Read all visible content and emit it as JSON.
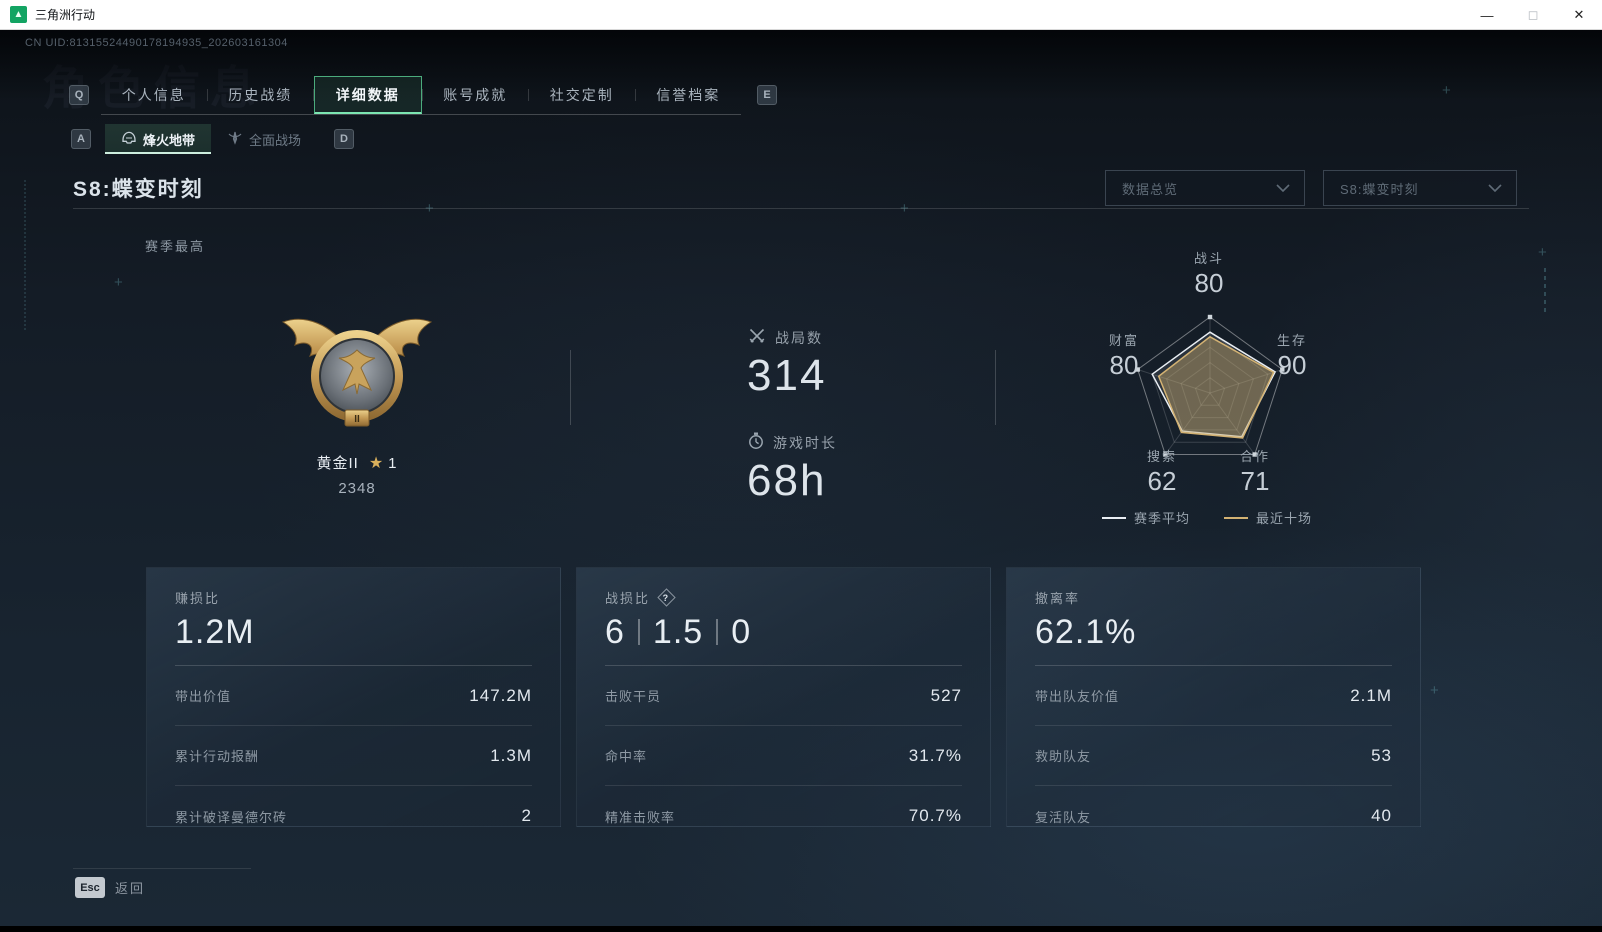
{
  "window": {
    "title": "三角洲行动",
    "controls": {
      "minimize": "—",
      "maximize": "◻",
      "close": "✕"
    }
  },
  "header": {
    "uid": "CN UID:81315524490178194935_202603161304",
    "ghost_title": "角色信息"
  },
  "tabs": {
    "left_key": "Q",
    "right_key": "E",
    "items": [
      {
        "label": "个人信息",
        "active": false
      },
      {
        "label": "历史战绩",
        "active": false
      },
      {
        "label": "详细数据",
        "active": true
      },
      {
        "label": "账号成就",
        "active": false
      },
      {
        "label": "社交定制",
        "active": false
      },
      {
        "label": "信誉档案",
        "active": false
      }
    ]
  },
  "subtabs": {
    "left_key": "A",
    "right_key": "D",
    "items": [
      {
        "label": "烽火地带",
        "icon": "helmet-icon",
        "active": true
      },
      {
        "label": "全面战场",
        "icon": "winged-dagger-icon",
        "active": false
      }
    ]
  },
  "page": {
    "title": "S8:蝶变时刻",
    "filters": [
      {
        "value": "数据总览",
        "icon": "chevron-down-icon"
      },
      {
        "value": "S8:蝶变时刻",
        "icon": "chevron-down-icon"
      }
    ]
  },
  "season": {
    "label": "赛季最高",
    "rank": {
      "name": "黄金II",
      "star_icon": "★",
      "star_count": "1",
      "score": "2348",
      "tier_numeral": "II"
    },
    "stats": [
      {
        "icon": "crossed-swords-icon",
        "label": "战局数",
        "value": "314"
      },
      {
        "icon": "stopwatch-icon",
        "label": "游戏时长",
        "value": "68h"
      }
    ]
  },
  "chart_data": {
    "type": "radar",
    "categories": [
      "战斗",
      "生存",
      "合作",
      "搜索",
      "财富"
    ],
    "axis_max": 100,
    "axes_display": [
      {
        "label": "战斗",
        "value": "80"
      },
      {
        "label": "生存",
        "value": "90"
      },
      {
        "label": "合作",
        "value": "71"
      },
      {
        "label": "搜索",
        "value": "62"
      },
      {
        "label": "财富",
        "value": "80"
      }
    ],
    "series": [
      {
        "name": "赛季平均",
        "color": "#e9eef3",
        "fill": "rgba(233,238,243,0.10)",
        "values": [
          80,
          90,
          71,
          62,
          80
        ]
      },
      {
        "name": "最近十场",
        "color": "#d3b273",
        "fill": "rgba(196,166,106,0.45)",
        "values": [
          74,
          88,
          73,
          64,
          71
        ]
      }
    ],
    "grid": {
      "rings": 5,
      "shape": "pentagon"
    },
    "legend_position": "bottom"
  },
  "cards": [
    {
      "title": "赚损比",
      "value_parts": [
        "1.2M"
      ],
      "rows": [
        {
          "label": "带出价值",
          "value": "147.2M"
        },
        {
          "label": "累计行动报酬",
          "value": "1.3M"
        },
        {
          "label": "累计破译曼德尔砖",
          "value": "2"
        }
      ]
    },
    {
      "title": "战损比",
      "title_badge": "?",
      "value_parts": [
        "6",
        "1.5",
        "0"
      ],
      "rows": [
        {
          "label": "击败干员",
          "value": "527"
        },
        {
          "label": "命中率",
          "value": "31.7%"
        },
        {
          "label": "精准击败率",
          "value": "70.7%"
        }
      ]
    },
    {
      "title": "撤离率",
      "value_parts": [
        "62.1%"
      ],
      "rows": [
        {
          "label": "带出队友价值",
          "value": "2.1M"
        },
        {
          "label": "救助队友",
          "value": "53"
        },
        {
          "label": "复活队友",
          "value": "40"
        }
      ]
    }
  ],
  "footer": {
    "key": "Esc",
    "label": "返回"
  }
}
